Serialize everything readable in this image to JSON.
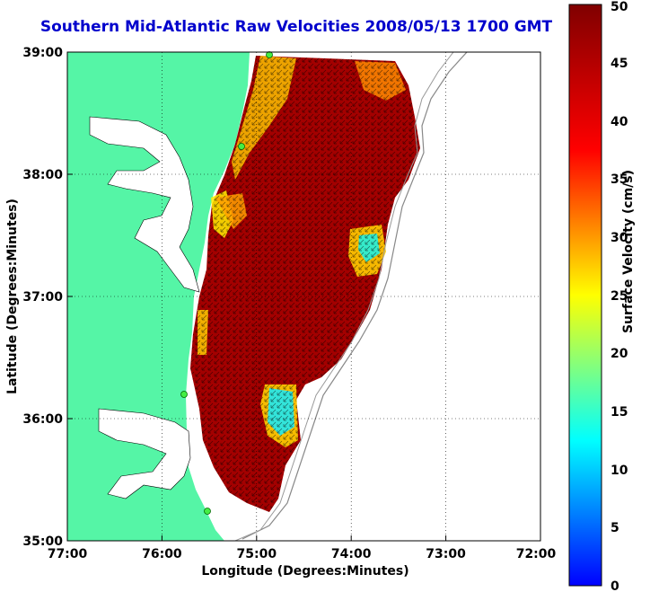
{
  "title": "Southern Mid-Atlantic Raw Velocities 2008/05/13 1700 GMT",
  "xlabel": "Longitude (Degrees:Minutes)",
  "ylabel": "Latitude (Degrees:Minutes)",
  "colorbar_label": "Surface Velocity (cm/s)",
  "x_ticks": [
    "77:00",
    "76:00",
    "75:00",
    "74:00",
    "73:00",
    "72:00"
  ],
  "y_ticks": [
    "39:00",
    "38:00",
    "37:00",
    "36:00",
    "35:00"
  ],
  "cbar_ticks": [
    "0",
    "5",
    "10",
    "15",
    "20",
    "25",
    "30",
    "35",
    "40",
    "45",
    "50"
  ],
  "colors": {
    "land": "#55f5a6",
    "title": "#0000cc",
    "water": "#ffffff"
  },
  "map": {
    "xlim": [
      -77,
      -72
    ],
    "ylim": [
      35,
      39
    ],
    "clim": [
      0,
      50
    ],
    "grid": "dotted",
    "station_markers": "green dots"
  }
}
